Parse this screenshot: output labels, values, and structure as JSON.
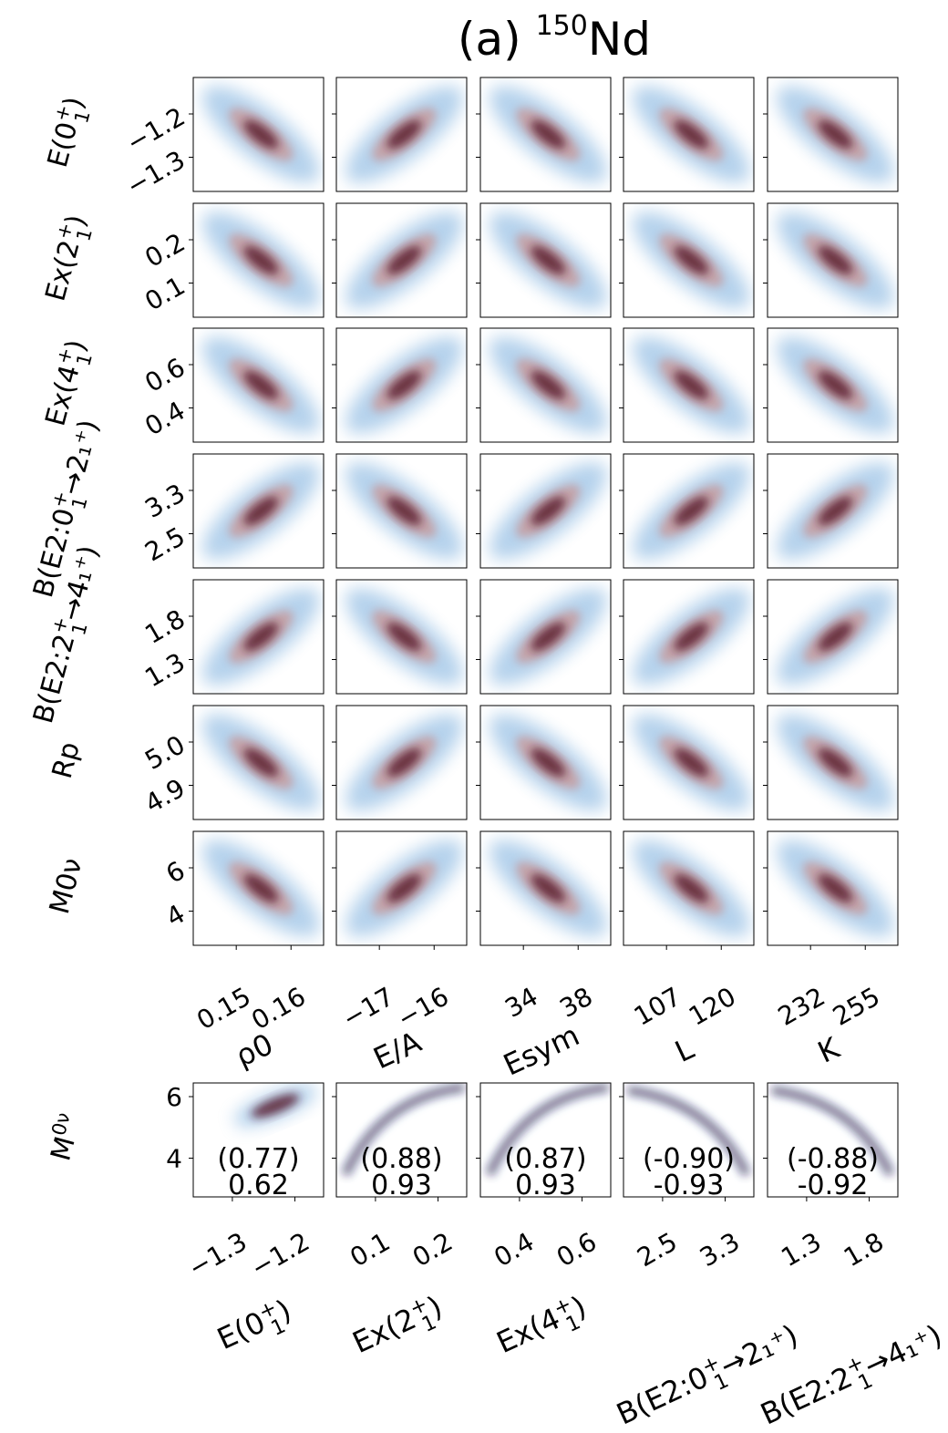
{
  "figure": {
    "title_prefix": "(a) ",
    "title_mass": "150",
    "title_element": "Nd"
  },
  "chart_data": [
    {
      "type": "heatmap",
      "name": "upper-grid",
      "description_of_marks": "2D posterior density correlations between nuclear-matter parameters and observables",
      "x_params": [
        {
          "label": "ρ0",
          "ticks": [
            "0.15",
            "0.16"
          ]
        },
        {
          "label": "E/A",
          "ticks": [
            "−17",
            "−16"
          ]
        },
        {
          "label": "Esym",
          "ticks": [
            "34",
            "38"
          ]
        },
        {
          "label": "L",
          "ticks": [
            "107",
            "120"
          ]
        },
        {
          "label": "K",
          "ticks": [
            "232",
            "255"
          ]
        }
      ],
      "y_params": [
        {
          "label": "E(0₁⁺)",
          "ticks": [
            "−1.2",
            "−1.3"
          ]
        },
        {
          "label": "Ex(2₁⁺)",
          "ticks": [
            "0.2",
            "0.1"
          ]
        },
        {
          "label": "Ex(4₁⁺)",
          "ticks": [
            "0.6",
            "0.4"
          ]
        },
        {
          "label": "B(E2:0₁⁺→2₁⁺)",
          "ticks": [
            "3.3",
            "2.5"
          ]
        },
        {
          "label": "B(E2:2₁⁺→4₁⁺)",
          "ticks": [
            "1.8",
            "1.3"
          ]
        },
        {
          "label": "Rp",
          "ticks": [
            "5.0",
            "4.9"
          ]
        },
        {
          "label": "M0ν",
          "ticks": [
            "6",
            "4"
          ]
        }
      ],
      "correlation_signs": [
        [
          -1,
          1,
          -1,
          -1,
          -1
        ],
        [
          -1,
          1,
          -1,
          -1,
          -1
        ],
        [
          -1,
          1,
          -1,
          -1,
          -1
        ],
        [
          1,
          -1,
          1,
          1,
          1
        ],
        [
          1,
          -1,
          1,
          1,
          1
        ],
        [
          -1,
          1,
          -1,
          -1,
          -1
        ],
        [
          -1,
          1,
          -1,
          -1,
          -1
        ]
      ]
    },
    {
      "type": "heatmap",
      "name": "lower-row",
      "y_param": {
        "label": "M0ν",
        "ticks": [
          "6",
          "4"
        ]
      },
      "x_params": [
        {
          "label": "E(0₁⁺)",
          "ticks": [
            "−1.3",
            "−1.2"
          ],
          "corr_paren": "(0.77)",
          "corr": "0.62"
        },
        {
          "label": "Ex(2₁⁺)",
          "ticks": [
            "0.1",
            "0.2"
          ],
          "corr_paren": "(0.88)",
          "corr": "0.93"
        },
        {
          "label": "Ex(4₁⁺)",
          "ticks": [
            "0.4",
            "0.6"
          ],
          "corr_paren": "(0.87)",
          "corr": "0.93"
        },
        {
          "label": "B(E2:0₁⁺→2₁⁺)",
          "ticks": [
            "2.5",
            "3.3"
          ],
          "corr_paren": "(-0.90)",
          "corr": "-0.93"
        },
        {
          "label": "B(E2:2₁⁺→4₁⁺)",
          "ticks": [
            "1.3",
            "1.8"
          ],
          "corr_paren": "(-0.88)",
          "corr": "-0.92"
        }
      ]
    }
  ],
  "colors": {
    "blue": "#5b9bd5",
    "red": "#5a1a2e",
    "pink": "#c9908e"
  }
}
